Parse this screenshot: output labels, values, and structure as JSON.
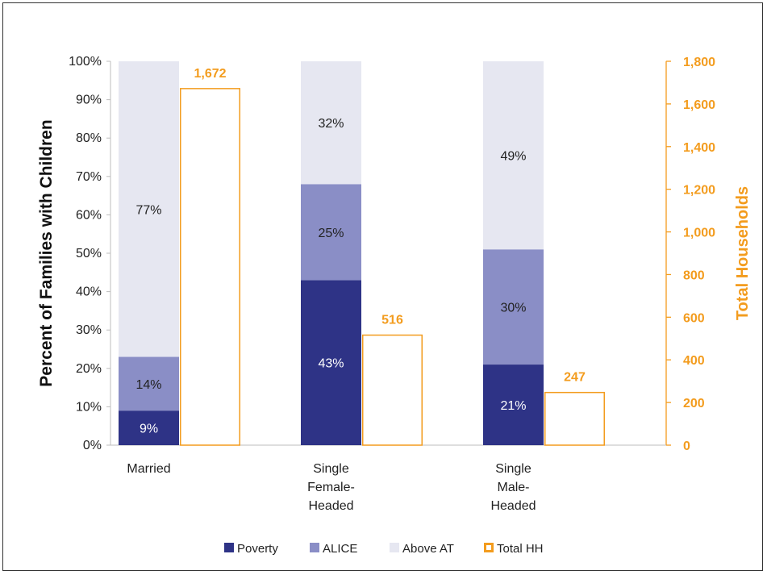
{
  "colors": {
    "poverty": "#2e3386",
    "alice": "#8a8ec6",
    "above": "#e6e7f1",
    "total": "#f39c1e",
    "poverty_text": "#ffffff",
    "dark_text": "#222222"
  },
  "chart_data": {
    "type": "bar",
    "categories": [
      [
        "Married"
      ],
      [
        "Single",
        "Female-",
        "Headed"
      ],
      [
        "Single",
        "Male-",
        "Headed"
      ]
    ],
    "series": [
      {
        "name": "Poverty",
        "values": [
          9,
          43,
          21
        ],
        "labels": [
          "9%",
          "43%",
          "21%"
        ],
        "axis": "left",
        "stack": "pct"
      },
      {
        "name": "ALICE",
        "values": [
          14,
          25,
          30
        ],
        "labels": [
          "14%",
          "25%",
          "30%"
        ],
        "axis": "left",
        "stack": "pct"
      },
      {
        "name": "Above AT",
        "values": [
          77,
          32,
          49
        ],
        "labels": [
          "77%",
          "32%",
          "49%"
        ],
        "axis": "left",
        "stack": "pct"
      },
      {
        "name": "Total HH",
        "values": [
          1672,
          516,
          247
        ],
        "labels": [
          "1,672",
          "516",
          "247"
        ],
        "axis": "right"
      }
    ],
    "ylabel": "Percent of Families with Children",
    "y2label": "Total Households",
    "ylim": [
      0,
      100
    ],
    "y2lim": [
      0,
      1800
    ],
    "yticks": [
      "0%",
      "10%",
      "20%",
      "30%",
      "40%",
      "50%",
      "60%",
      "70%",
      "80%",
      "90%",
      "100%"
    ],
    "y2ticks": [
      "0",
      "200",
      "400",
      "600",
      "800",
      "1,000",
      "1,200",
      "1,400",
      "1,600",
      "1,800"
    ],
    "legend": {
      "position": "bottom",
      "items": [
        "Poverty",
        "ALICE",
        "Above AT",
        "Total HH"
      ]
    },
    "grid": false
  }
}
